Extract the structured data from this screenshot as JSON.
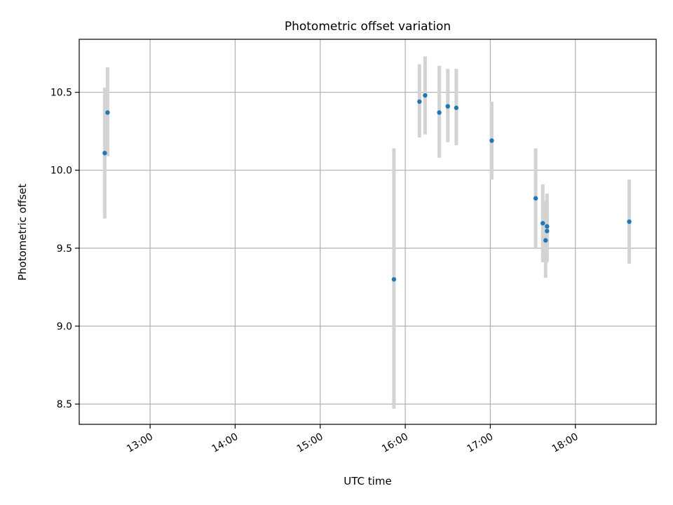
{
  "chart_data": {
    "type": "scatter",
    "title": "Photometric offset variation",
    "xlabel": "UTC time",
    "ylabel": "Photometric offset",
    "xlim": [
      "12:10",
      "18:57"
    ],
    "ylim": [
      8.37,
      10.84
    ],
    "x_ticks": [
      "13:00",
      "14:00",
      "15:00",
      "16:00",
      "17:00",
      "18:00"
    ],
    "y_ticks": [
      "8.5",
      "9.0",
      "9.5",
      "10.0",
      "10.5"
    ],
    "grid": true,
    "legend": "none",
    "colors": {
      "points": "#1f77b4",
      "error_bars": "#d3d3d3",
      "grid": "#b0b0b0"
    },
    "points": [
      {
        "x": "12:28",
        "y": 10.11,
        "err_low": 9.69,
        "err_high": 10.53
      },
      {
        "x": "12:30",
        "y": 10.37,
        "err_low": 10.09,
        "err_high": 10.66
      },
      {
        "x": "15:52",
        "y": 9.3,
        "err_low": 8.47,
        "err_high": 10.14
      },
      {
        "x": "16:10",
        "y": 10.44,
        "err_low": 10.21,
        "err_high": 10.68
      },
      {
        "x": "16:14",
        "y": 10.48,
        "err_low": 10.23,
        "err_high": 10.73
      },
      {
        "x": "16:24",
        "y": 10.37,
        "err_low": 10.08,
        "err_high": 10.67
      },
      {
        "x": "16:30",
        "y": 10.41,
        "err_low": 10.18,
        "err_high": 10.65
      },
      {
        "x": "16:36",
        "y": 10.4,
        "err_low": 10.16,
        "err_high": 10.65
      },
      {
        "x": "17:01",
        "y": 10.19,
        "err_low": 9.94,
        "err_high": 10.44
      },
      {
        "x": "17:32",
        "y": 9.82,
        "err_low": 9.5,
        "err_high": 10.14
      },
      {
        "x": "17:37",
        "y": 9.66,
        "err_low": 9.41,
        "err_high": 9.91
      },
      {
        "x": "17:39",
        "y": 9.55,
        "err_low": 9.31,
        "err_high": 9.8
      },
      {
        "x": "17:40",
        "y": 9.64,
        "err_low": 9.43,
        "err_high": 9.85
      },
      {
        "x": "17:40",
        "y": 9.61,
        "err_low": 9.41,
        "err_high": 9.84
      },
      {
        "x": "18:38",
        "y": 9.67,
        "err_low": 9.4,
        "err_high": 9.94
      }
    ]
  }
}
